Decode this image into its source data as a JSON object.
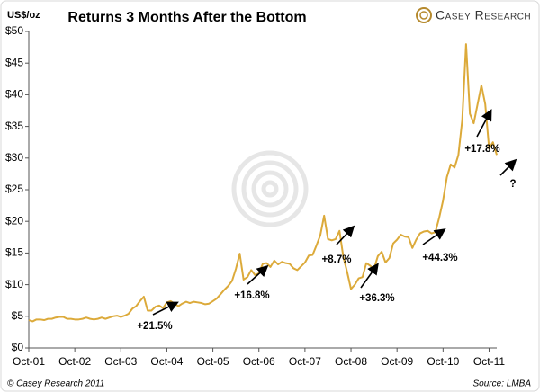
{
  "chart_data": {
    "type": "line",
    "title": "Returns 3 Months After the Bottom",
    "y_label": "US$/oz",
    "brand": "Casey Research",
    "credit": "© Casey Research 2011",
    "source": "Source: LMBA",
    "annotations": [
      "+21.5%",
      "+16.8%",
      "+8.7%",
      "+36.3%",
      "+44.3%",
      "+17.8%",
      "?"
    ],
    "color": "#dcaa3a",
    "x": [
      "2001-10",
      "2001-11",
      "2001-12",
      "2002-01",
      "2002-02",
      "2002-03",
      "2002-04",
      "2002-05",
      "2002-06",
      "2002-07",
      "2002-08",
      "2002-09",
      "2002-10",
      "2002-11",
      "2002-12",
      "2003-01",
      "2003-02",
      "2003-03",
      "2003-04",
      "2003-05",
      "2003-06",
      "2003-07",
      "2003-08",
      "2003-09",
      "2003-10",
      "2003-11",
      "2003-12",
      "2004-01",
      "2004-02",
      "2004-03",
      "2004-04",
      "2004-05",
      "2004-06",
      "2004-07",
      "2004-08",
      "2004-09",
      "2004-10",
      "2004-11",
      "2004-12",
      "2005-01",
      "2005-02",
      "2005-03",
      "2005-04",
      "2005-05",
      "2005-06",
      "2005-07",
      "2005-08",
      "2005-09",
      "2005-10",
      "2005-11",
      "2005-12",
      "2006-01",
      "2006-02",
      "2006-03",
      "2006-04",
      "2006-05",
      "2006-06",
      "2006-07",
      "2006-08",
      "2006-09",
      "2006-10",
      "2006-11",
      "2006-12",
      "2007-01",
      "2007-02",
      "2007-03",
      "2007-04",
      "2007-05",
      "2007-06",
      "2007-07",
      "2007-08",
      "2007-09",
      "2007-10",
      "2007-11",
      "2007-12",
      "2008-01",
      "2008-02",
      "2008-03",
      "2008-04",
      "2008-05",
      "2008-06",
      "2008-07",
      "2008-08",
      "2008-09",
      "2008-10",
      "2008-11",
      "2008-12",
      "2009-01",
      "2009-02",
      "2009-03",
      "2009-04",
      "2009-05",
      "2009-06",
      "2009-07",
      "2009-08",
      "2009-09",
      "2009-10",
      "2009-11",
      "2009-12",
      "2010-01",
      "2010-02",
      "2010-03",
      "2010-04",
      "2010-05",
      "2010-06",
      "2010-07",
      "2010-08",
      "2010-09",
      "2010-10",
      "2010-11",
      "2010-12",
      "2011-01",
      "2011-02",
      "2011-03",
      "2011-04",
      "2011-05",
      "2011-06",
      "2011-07",
      "2011-08",
      "2011-09",
      "2011-10",
      "2011-11",
      "2011-12"
    ],
    "values": [
      4.4,
      4.2,
      4.5,
      4.5,
      4.4,
      4.6,
      4.6,
      4.8,
      4.9,
      4.9,
      4.6,
      4.6,
      4.5,
      4.5,
      4.6,
      4.8,
      4.6,
      4.5,
      4.6,
      4.8,
      4.6,
      4.8,
      5.0,
      5.1,
      4.9,
      5.1,
      5.4,
      6.2,
      6.6,
      7.4,
      8.1,
      5.9,
      5.9,
      6.5,
      6.7,
      6.3,
      7.2,
      7.4,
      7.0,
      6.6,
      7.0,
      7.3,
      7.1,
      7.3,
      7.2,
      7.1,
      6.9,
      7.0,
      7.4,
      7.8,
      8.5,
      9.2,
      9.8,
      10.6,
      12.5,
      14.9,
      10.8,
      11.2,
      12.3,
      11.5,
      11.8,
      13.3,
      13.4,
      12.8,
      13.8,
      13.2,
      13.6,
      13.4,
      13.3,
      12.6,
      12.3,
      12.9,
      13.5,
      14.6,
      14.7,
      16.2,
      17.8,
      20.9,
      17.2,
      17.0,
      17.2,
      18.5,
      14.4,
      12.0,
      9.3,
      10.0,
      11.0,
      11.2,
      13.4,
      13.0,
      12.5,
      14.5,
      15.2,
      13.5,
      14.2,
      16.5,
      17.1,
      17.9,
      17.6,
      17.5,
      15.8,
      17.1,
      18.1,
      18.4,
      18.5,
      18.1,
      18.3,
      20.6,
      23.3,
      27.0,
      29.0,
      28.5,
      30.5,
      36.0,
      48.0,
      37.0,
      35.5,
      38.5,
      41.5,
      38.5,
      31.5,
      32.5,
      30.5
    ],
    "xlim": [
      "2001-10",
      "2011-12"
    ],
    "xticks": [
      {
        "value": "2001-10",
        "label": "Oct-01"
      },
      {
        "value": "2002-10",
        "label": "Oct-02"
      },
      {
        "value": "2003-10",
        "label": "Oct-03"
      },
      {
        "value": "2004-10",
        "label": "Oct-04"
      },
      {
        "value": "2005-10",
        "label": "Oct-05"
      },
      {
        "value": "2006-10",
        "label": "Oct-06"
      },
      {
        "value": "2007-10",
        "label": "Oct-07"
      },
      {
        "value": "2008-10",
        "label": "Oct-08"
      },
      {
        "value": "2009-10",
        "label": "Oct-09"
      },
      {
        "value": "2010-10",
        "label": "Oct-10"
      },
      {
        "value": "2011-10",
        "label": "Oct-11"
      }
    ],
    "ylim": [
      0,
      50
    ],
    "yticks": [
      {
        "value": 0,
        "label": "$0"
      },
      {
        "value": 5,
        "label": "$5"
      },
      {
        "value": 10,
        "label": "$10"
      },
      {
        "value": 15,
        "label": "$15"
      },
      {
        "value": 20,
        "label": "$20"
      },
      {
        "value": 25,
        "label": "$25"
      },
      {
        "value": 30,
        "label": "$30"
      },
      {
        "value": 35,
        "label": "$35"
      },
      {
        "value": 40,
        "label": "$40"
      },
      {
        "value": 45,
        "label": "$45"
      },
      {
        "value": 50,
        "label": "$50"
      }
    ],
    "grid": false
  }
}
